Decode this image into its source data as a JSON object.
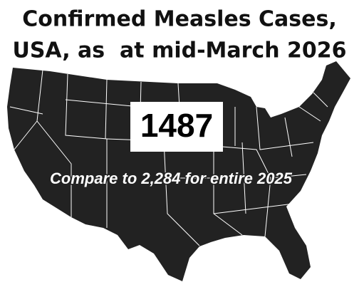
{
  "title": [
    "Confirmed Measles Cases,",
    "USA, as  at mid-March 2026"
  ],
  "case_count": "1487",
  "comparison": "Compare to 2,284 for entire 2025"
}
